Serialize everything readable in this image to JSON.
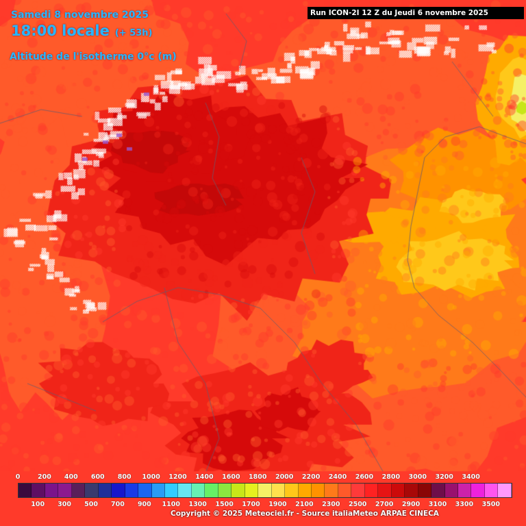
{
  "header": {
    "date": "Samedi 8 novembre 2025",
    "time": "18:00 locale",
    "offset": "(+ 53h)",
    "parameter": "Altitude de l'isotherme 0°c (m)",
    "run": "Run ICON-2I 12 Z du Jeudi 6 novembre 2025"
  },
  "legend": {
    "top_labels": [
      "0",
      "200",
      "400",
      "600",
      "800",
      "1000",
      "1200",
      "1400",
      "1600",
      "1800",
      "2000",
      "2200",
      "2400",
      "2600",
      "2800",
      "3000",
      "3200",
      "3400"
    ],
    "bottom_labels": [
      "100",
      "300",
      "500",
      "700",
      "900",
      "1100",
      "1300",
      "1500",
      "1700",
      "1900",
      "2100",
      "2300",
      "2500",
      "2700",
      "2900",
      "3100",
      "3300",
      "3500"
    ],
    "colors": [
      "#3a0a3e",
      "#5e0f63",
      "#7b148a",
      "#8b1a8e",
      "#5a1f5a",
      "#3a3a6e",
      "#1f2f99",
      "#1717cc",
      "#1a3ae6",
      "#1a66f0",
      "#2a9cf5",
      "#33ccff",
      "#66e6f0",
      "#66f0b3",
      "#66f066",
      "#8ce640",
      "#c8e619",
      "#e6f01f",
      "#f5f066",
      "#ffe04d",
      "#ffc81a",
      "#ffaa00",
      "#ff9200",
      "#ff7a1a",
      "#ff5a2a",
      "#ff3a3a",
      "#ff2222",
      "#e61414",
      "#cc0a0a",
      "#a80808",
      "#8a0606",
      "#6e0e4a",
      "#99116e",
      "#cc22aa",
      "#ee22dd",
      "#ff55ee",
      "#ff99ff"
    ]
  },
  "map": {
    "colors": {
      "deep_red": "#d60a0a",
      "red": "#f02418",
      "red_orange": "#ff3a2a",
      "orange_red": "#ff5a2a",
      "orange": "#ff7a1a",
      "light_orange": "#ff9200",
      "amber": "#ffaa00",
      "gold": "#ffc81a",
      "yellow": "#ffe04d",
      "pale_yellow": "#f5f066",
      "lime": "#c8e619",
      "hatch": "#ffffff",
      "purple": "#9a55cc",
      "border": "#6b5a6b"
    }
  },
  "footer": {
    "copyright": "Copyright © 2025 Meteociel.fr - Source italiaMeteo ARPAE CINECA"
  }
}
